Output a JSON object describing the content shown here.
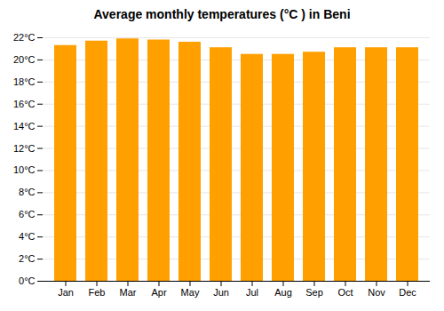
{
  "chart_data": {
    "type": "bar",
    "title": "Average monthly temperatures (°C ) in Beni",
    "categories": [
      "Jan",
      "Feb",
      "Mar",
      "Apr",
      "May",
      "Jun",
      "Jul",
      "Aug",
      "Sep",
      "Oct",
      "Nov",
      "Dec"
    ],
    "values": [
      21.3,
      21.7,
      21.9,
      21.8,
      21.6,
      21.1,
      20.5,
      20.5,
      20.7,
      21.1,
      21.1,
      21.1
    ],
    "color": "#FFA000",
    "ylim": [
      0,
      22
    ],
    "yticks": [
      {
        "value": 0,
        "label": "0°C"
      },
      {
        "value": 2,
        "label": "2°C"
      },
      {
        "value": 4,
        "label": "4°C"
      },
      {
        "value": 6,
        "label": "6°C"
      },
      {
        "value": 8,
        "label": "8°C"
      },
      {
        "value": 10,
        "label": "10°C"
      },
      {
        "value": 12,
        "label": "12°C"
      },
      {
        "value": 14,
        "label": "14°C"
      },
      {
        "value": 16,
        "label": "16°C"
      },
      {
        "value": 18,
        "label": "18°C"
      },
      {
        "value": 20,
        "label": "20°C"
      },
      {
        "value": 22,
        "label": "22°C"
      }
    ],
    "grid": true
  }
}
